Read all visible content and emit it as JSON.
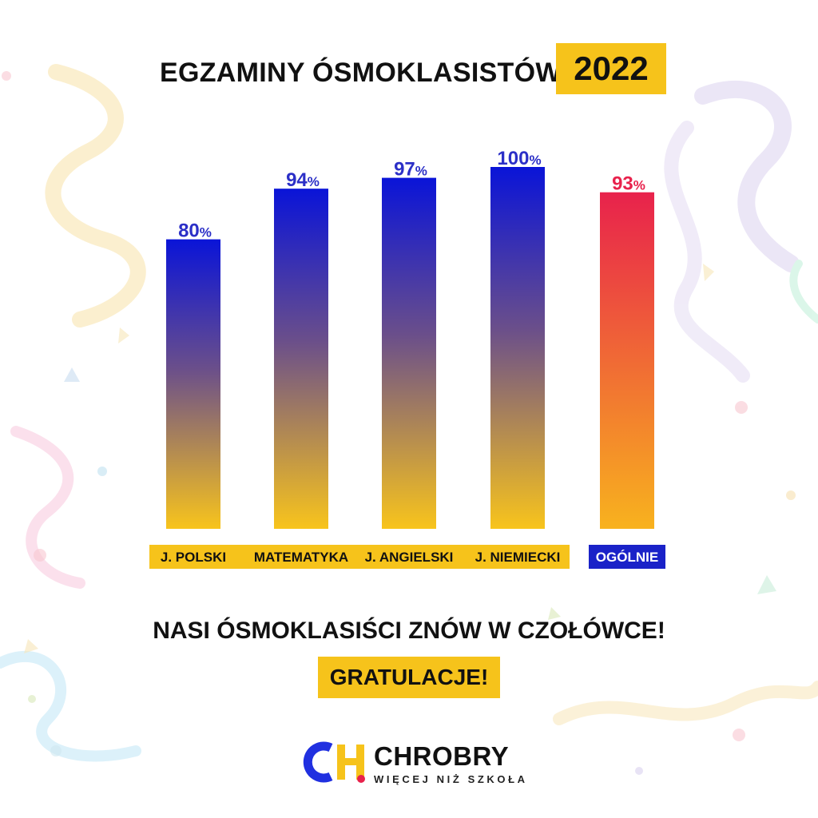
{
  "header": {
    "title": "EGZAMINY ÓSMOKLASISTÓW",
    "year": "2022"
  },
  "chart_data": {
    "type": "bar",
    "categories": [
      "J. POLSKI",
      "MATEMATYKA",
      "J. ANGIELSKI",
      "J. NIEMIECKI",
      "OGÓLNIE"
    ],
    "values": [
      80,
      94,
      97,
      100,
      93
    ],
    "value_labels": [
      "80",
      "94",
      "97",
      "100",
      "93"
    ],
    "unit": "%",
    "ylim": [
      0,
      100
    ],
    "grid": false,
    "legend": "none",
    "colors": {
      "subject_gradient_top": "#0a14d8",
      "subject_gradient_mid": "#6b4f8a",
      "subject_gradient_bottom": "#f8c41c",
      "overall_gradient_top": "#e8224c",
      "overall_gradient_bottom": "#f8b21e",
      "subject_label": "#2b2fc7",
      "overall_label": "#e8224c",
      "category_band": "#f6c31b",
      "overall_band": "#1a22c8"
    }
  },
  "footer": {
    "slogan": "NASI ÓSMOKLASIŚCI ZNÓW W CZOŁÓWCE!",
    "congrats": "GRATULACJE!"
  },
  "logo": {
    "name": "CHROBRY",
    "tagline": "WIĘCEJ NIŻ SZKOŁA",
    "colors": {
      "c": "#2030e0",
      "h": "#f6c31b",
      "dot": "#e8224c"
    }
  }
}
